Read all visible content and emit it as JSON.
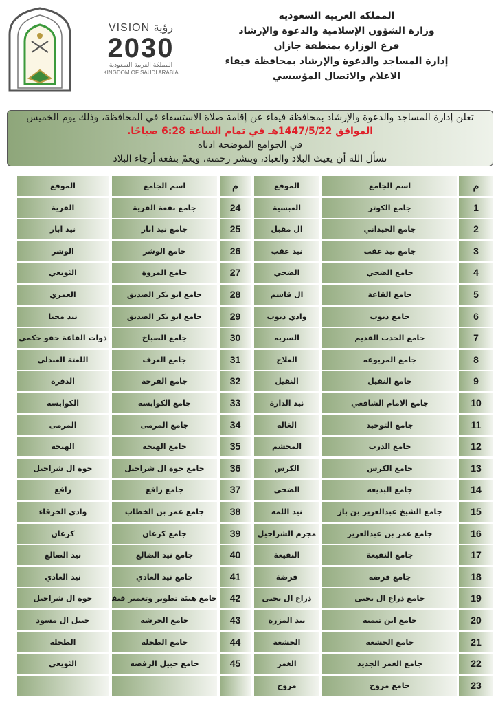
{
  "header": {
    "lines": [
      "المملكة العربية السعودية",
      "وزارة الشؤون الإسلامية والدعوة والإرشاد",
      "فرع الوزارة بمنطقة جازان",
      "إدارة المساجد والدعوة والإرشاد بمحافظة فيفاء",
      "الاعلام والاتصال المؤسسي"
    ],
    "vision_logo": {
      "line1": "VISION رؤية",
      "line2": "2030",
      "line3": "المملكة العربية السعودية",
      "line4": "KINGDOM OF SAUDI ARABIA"
    },
    "ministry_logo": "وزارة الشؤون الإسلامية والدعوة والإرشاد"
  },
  "notice": {
    "line1": "تعلن إدارة المساجد والدعوة والإرشاد بمحافظة فيفاء عن إقامة صلاة الاستسقاء في المحافظة، وذلك يوم الخميس",
    "line2": "الموافق 1447/5/22هـ في تمام الساعة 6:28 صباحًا.",
    "line3": "في الجوامع  الموضحة ادناه",
    "line4": "نسأل الله أن يغيث البلاد والعباد، وينشر رحمته، ويعمّ بنفعه أرجاء البلاد",
    "highlight_color": "#e0202a"
  },
  "columns": {
    "num": "م",
    "name": "اسم الجامع",
    "location": "الموقع"
  },
  "right_table": [
    [
      "1",
      "جامع الكوثر",
      "العبسية"
    ],
    [
      "2",
      "جامع الحيداني",
      "ال مقبل"
    ],
    [
      "3",
      "جامع نيد عقب",
      "نيد عقب"
    ],
    [
      "4",
      "جامع الضحي",
      "الضحي"
    ],
    [
      "5",
      "جامع القاعة",
      "ال قاسم"
    ],
    [
      "6",
      "جامع ذبوب",
      "وادي ذبوب"
    ],
    [
      "7",
      "جامع الحدب القديم",
      "السربه"
    ],
    [
      "8",
      "جامع المربوعه",
      "العلاج"
    ],
    [
      "9",
      "جامع النقيل",
      "النقيل"
    ],
    [
      "10",
      "جامع الامام الشافعي",
      "نيد الدارة"
    ],
    [
      "11",
      "جامع التوحيد",
      "الغاله"
    ],
    [
      "12",
      "جامع الدرب",
      "المخشم"
    ],
    [
      "13",
      "جامع الكرس",
      "الكرس"
    ],
    [
      "14",
      "جامع البديعه",
      "الضحى"
    ],
    [
      "15",
      "جامع الشيخ عبدالعزيز بن باز",
      "نيد اللمه"
    ],
    [
      "16",
      "جامع عمر بن عبدالعزيز",
      "مجرم الشراحيل"
    ],
    [
      "17",
      "جامع النفيعة",
      "النفيعة"
    ],
    [
      "18",
      "جامع قرضه",
      "قرضة"
    ],
    [
      "19",
      "جامع ذراع ال يحيى",
      "ذراع ال يحيى"
    ],
    [
      "20",
      "جامع ابن تيميه",
      "نيد المزرة"
    ],
    [
      "21",
      "جامع الخشعه",
      "الخشعة"
    ],
    [
      "22",
      "جامع الغمر الجديد",
      "الغمر"
    ],
    [
      "23",
      "جامع مروح",
      "مروح"
    ]
  ],
  "left_table": [
    [
      "24",
      "جامع بقعة القرية",
      "القرية"
    ],
    [
      "25",
      "جامع نيد ابار",
      "نيد ابار"
    ],
    [
      "26",
      "جامع الوشر",
      "الوشر"
    ],
    [
      "27",
      "جامع المروة",
      "الثويعي"
    ],
    [
      "28",
      "جامع ابو بكر الصديق",
      "العمري"
    ],
    [
      "29",
      "جامع ابو بكر الصديق",
      "نيد مجبا"
    ],
    [
      "30",
      "جامع الصباخ",
      "ذوات القاعة حقو حكمي"
    ],
    [
      "31",
      "جامع العرف",
      "اللعثة العبدلي"
    ],
    [
      "32",
      "جامع الفرحة",
      "الدفرة"
    ],
    [
      "33",
      "جامع الكوابسه",
      "الكوابسه"
    ],
    [
      "34",
      "جامع المرمى",
      "المرمى"
    ],
    [
      "35",
      "جامع الهيجه",
      "الهيجه"
    ],
    [
      "36",
      "جامع جوة ال شراحيل",
      "جوة ال شراحيل"
    ],
    [
      "37",
      "جامع رافع",
      "رافع"
    ],
    [
      "38",
      "جامع عمر بن الخطاب",
      "وادي الخرقاء"
    ],
    [
      "39",
      "جامع كرعان",
      "كرعان"
    ],
    [
      "40",
      "جامع نيد الضالع",
      "نيد الضالع"
    ],
    [
      "41",
      "جامع نيد العادي",
      "نيد العادي"
    ],
    [
      "42",
      "جامع هيئة تطوير وتعمير فيفاء",
      "جوة ال شراحيل"
    ],
    [
      "43",
      "جامع الجرشه",
      "حبيل ال مسود"
    ],
    [
      "44",
      "جامع الطحله",
      "الطحله"
    ],
    [
      "45",
      "جامع حبيل الرفصه",
      "الثويعي"
    ],
    [
      "",
      "",
      ""
    ]
  ],
  "colors": {
    "cell_green": "#97ae83",
    "cell_light": "#f3f5f0"
  }
}
